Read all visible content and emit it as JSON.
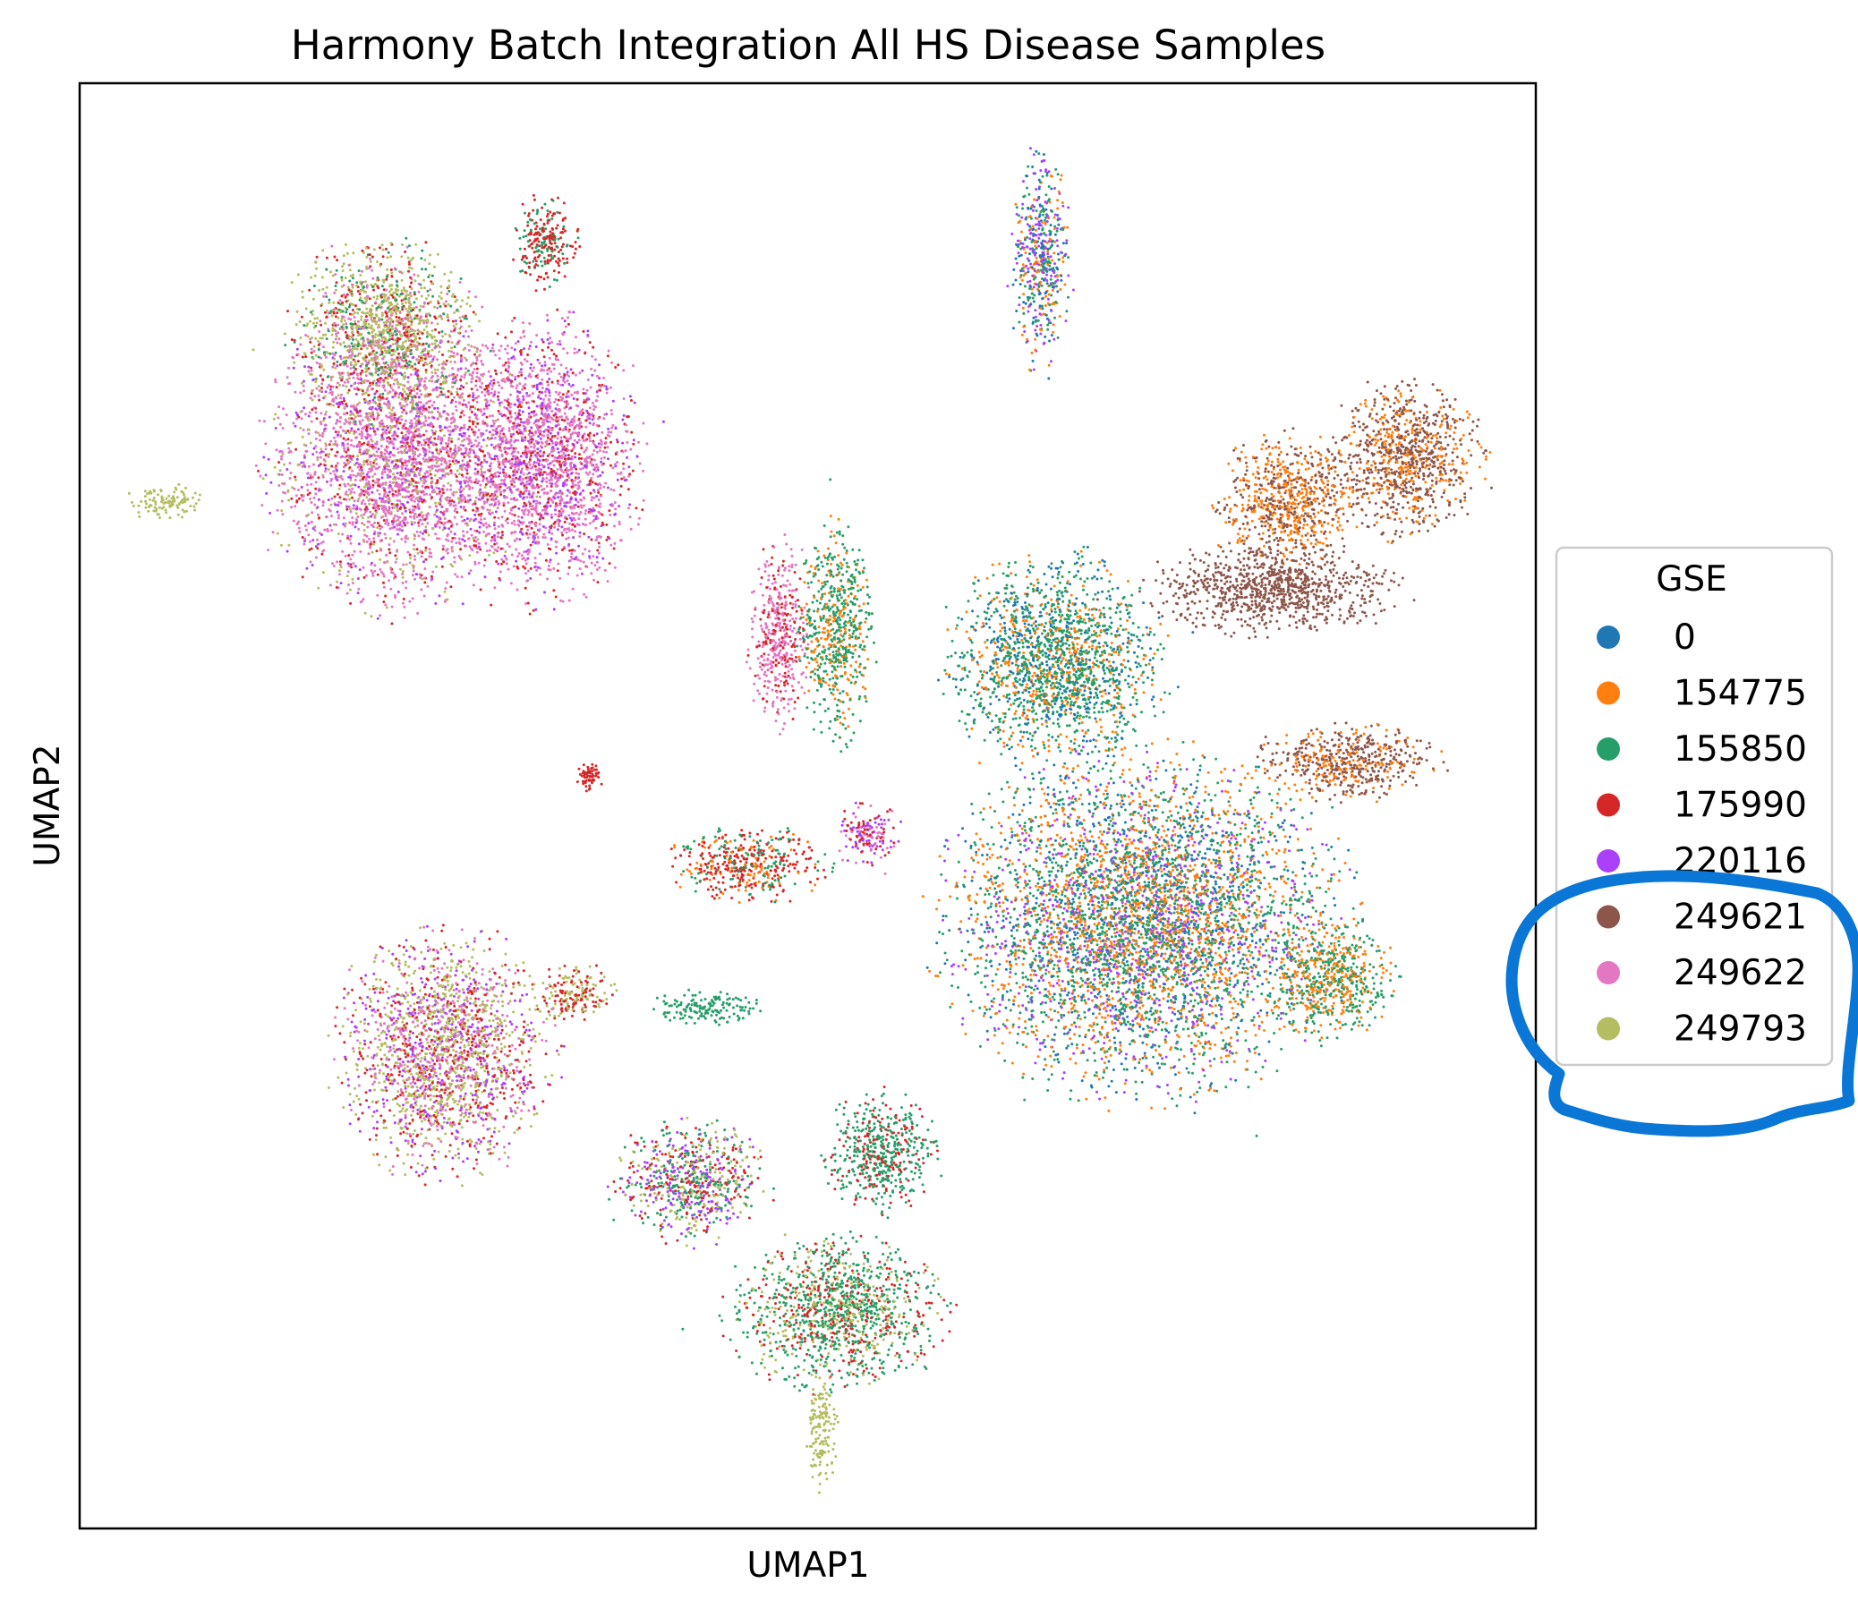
{
  "chart_data": {
    "type": "scatter",
    "title": "Harmony Batch Integration All HS Disease Samples",
    "xlabel": "UMAP1",
    "ylabel": "UMAP2",
    "x_ticks": [],
    "y_ticks": [],
    "grid": false,
    "legend": {
      "title": "GSE",
      "placement": "right, outside plot area",
      "entries": [
        {
          "label": "0",
          "color": "#1f77b4"
        },
        {
          "label": "154775",
          "color": "#ff7f0e"
        },
        {
          "label": "155850",
          "color": "#279e68"
        },
        {
          "label": "175990",
          "color": "#d62728"
        },
        {
          "label": "220116",
          "color": "#aa40fc"
        },
        {
          "label": "249621",
          "color": "#8c564b"
        },
        {
          "label": "249622",
          "color": "#e377c2"
        },
        {
          "label": "249793",
          "color": "#b5bd61"
        }
      ]
    },
    "annotation": {
      "shape": "hand-drawn circle",
      "color": "#0a76d6",
      "encloses": [
        "249621",
        "249622",
        "249793"
      ]
    },
    "clusters": [
      {
        "x": 0.22,
        "y": 0.74,
        "rx": 0.085,
        "ry": 0.095,
        "series": [
          "249622",
          "249622",
          "249622",
          "175990",
          "220116",
          "249793",
          "249622"
        ]
      },
      {
        "x": 0.21,
        "y": 0.83,
        "rx": 0.06,
        "ry": 0.06,
        "series": [
          "249793",
          "249793",
          "249793",
          "249622",
          "175990",
          "155850"
        ]
      },
      {
        "x": 0.32,
        "y": 0.74,
        "rx": 0.06,
        "ry": 0.09,
        "series": [
          "249622",
          "249622",
          "175990",
          "249622",
          "220116"
        ]
      },
      {
        "x": 0.32,
        "y": 0.89,
        "rx": 0.022,
        "ry": 0.03,
        "series": [
          "175990",
          "175990",
          "155850"
        ]
      },
      {
        "x": 0.06,
        "y": 0.71,
        "rx": 0.025,
        "ry": 0.012,
        "series": [
          "249793"
        ]
      },
      {
        "x": 0.48,
        "y": 0.62,
        "rx": 0.02,
        "ry": 0.06,
        "series": [
          "249622",
          "249622",
          "175990"
        ]
      },
      {
        "x": 0.52,
        "y": 0.62,
        "rx": 0.025,
        "ry": 0.07,
        "series": [
          "155850",
          "154775",
          "155850"
        ]
      },
      {
        "x": 0.66,
        "y": 0.88,
        "rx": 0.02,
        "ry": 0.07,
        "series": [
          "154775",
          "155850",
          "0",
          "220116"
        ]
      },
      {
        "x": 0.35,
        "y": 0.52,
        "rx": 0.008,
        "ry": 0.01,
        "series": [
          "175990"
        ]
      },
      {
        "x": 0.46,
        "y": 0.46,
        "rx": 0.05,
        "ry": 0.025,
        "series": [
          "175990",
          "175990",
          "155850",
          "154775"
        ]
      },
      {
        "x": 0.54,
        "y": 0.48,
        "rx": 0.022,
        "ry": 0.02,
        "series": [
          "175990",
          "249622",
          "220116"
        ]
      },
      {
        "x": 0.34,
        "y": 0.37,
        "rx": 0.025,
        "ry": 0.02,
        "series": [
          "175990",
          "249793"
        ]
      },
      {
        "x": 0.43,
        "y": 0.36,
        "rx": 0.035,
        "ry": 0.012,
        "series": [
          "155850"
        ]
      },
      {
        "x": 0.25,
        "y": 0.33,
        "rx": 0.07,
        "ry": 0.08,
        "series": [
          "249793",
          "249793",
          "249622",
          "220116",
          "175990"
        ]
      },
      {
        "x": 0.42,
        "y": 0.24,
        "rx": 0.05,
        "ry": 0.04,
        "series": [
          "155850",
          "220116",
          "175990",
          "249793"
        ]
      },
      {
        "x": 0.55,
        "y": 0.26,
        "rx": 0.035,
        "ry": 0.04,
        "series": [
          "155850",
          "155850",
          "175990"
        ]
      },
      {
        "x": 0.52,
        "y": 0.15,
        "rx": 0.07,
        "ry": 0.05,
        "series": [
          "155850",
          "155850",
          "249793",
          "175990"
        ]
      },
      {
        "x": 0.51,
        "y": 0.07,
        "rx": 0.01,
        "ry": 0.04,
        "series": [
          "249793"
        ]
      },
      {
        "x": 0.67,
        "y": 0.6,
        "rx": 0.07,
        "ry": 0.07,
        "series": [
          "155850",
          "155850",
          "154775",
          "0"
        ]
      },
      {
        "x": 0.73,
        "y": 0.42,
        "rx": 0.13,
        "ry": 0.11,
        "series": [
          "155850",
          "154775",
          "155850",
          "154775",
          "0",
          "220116"
        ]
      },
      {
        "x": 0.86,
        "y": 0.38,
        "rx": 0.04,
        "ry": 0.04,
        "series": [
          "154775",
          "155850"
        ]
      },
      {
        "x": 0.87,
        "y": 0.53,
        "rx": 0.06,
        "ry": 0.025,
        "series": [
          "154775",
          "249621",
          "249621"
        ]
      },
      {
        "x": 0.83,
        "y": 0.71,
        "rx": 0.045,
        "ry": 0.045,
        "series": [
          "154775",
          "249621"
        ]
      },
      {
        "x": 0.91,
        "y": 0.74,
        "rx": 0.05,
        "ry": 0.05,
        "series": [
          "249621",
          "249621",
          "154775"
        ]
      },
      {
        "x": 0.82,
        "y": 0.65,
        "rx": 0.08,
        "ry": 0.03,
        "series": [
          "249621"
        ]
      }
    ]
  }
}
